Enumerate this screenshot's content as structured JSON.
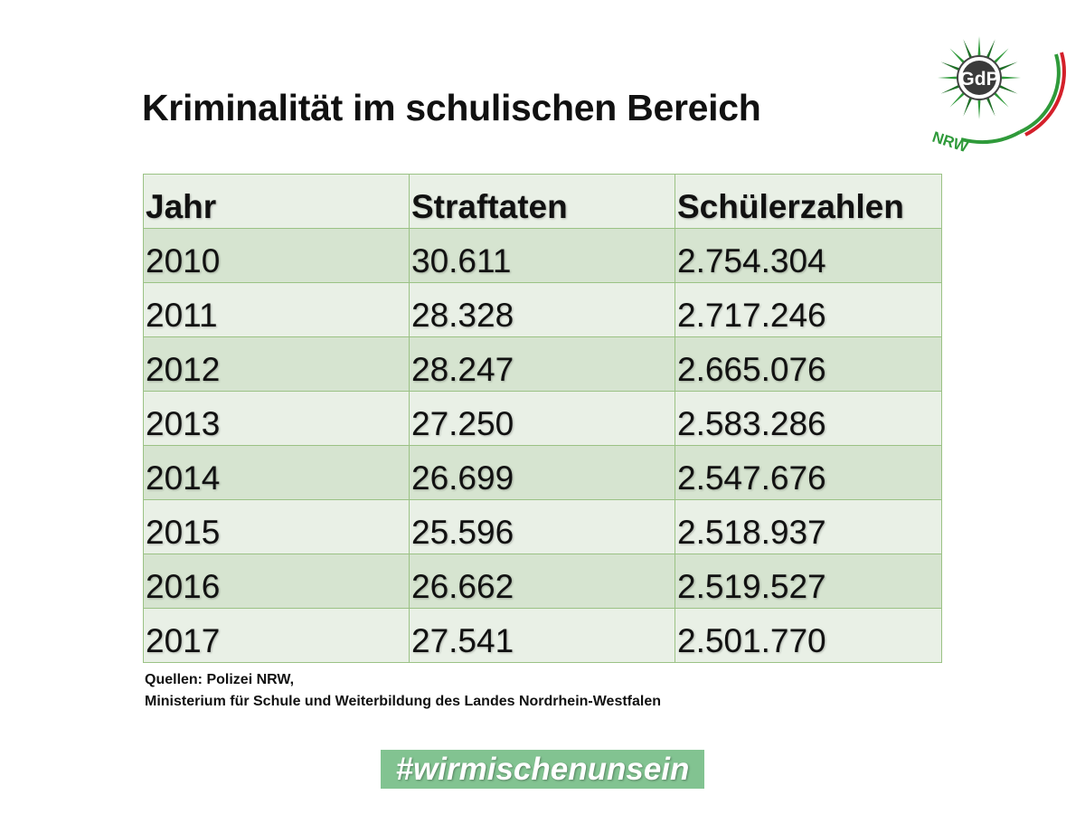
{
  "slide": {
    "title": "Kriminalität im schulischen Bereich"
  },
  "logo": {
    "monogram": "GdP",
    "region": "NRW",
    "colors": {
      "star": "#2f9a3a",
      "star_dark": "#1f6f27",
      "arc_green": "#2f9a3a",
      "arc_red": "#d4202a"
    }
  },
  "table": {
    "headers": {
      "year": "Jahr",
      "offenses": "Straftaten",
      "students": "Schülerzahlen"
    },
    "rows": [
      {
        "year": "2010",
        "offenses": "30.611",
        "students": "2.754.304"
      },
      {
        "year": "2011",
        "offenses": "28.328",
        "students": "2.717.246"
      },
      {
        "year": "2012",
        "offenses": "28.247",
        "students": "2.665.076"
      },
      {
        "year": "2013",
        "offenses": "27.250",
        "students": "2.583.286"
      },
      {
        "year": "2014",
        "offenses": "26.699",
        "students": "2.547.676"
      },
      {
        "year": "2015",
        "offenses": "25.596",
        "students": "2.518.937"
      },
      {
        "year": "2016",
        "offenses": "26.662",
        "students": "2.519.527"
      },
      {
        "year": "2017",
        "offenses": "27.541",
        "students": "2.501.770"
      }
    ]
  },
  "sources": {
    "line1": "Quellen: Polizei NRW,",
    "line2": "Ministerium für Schule und Weiterbildung des Landes Nordrhein-Westfalen"
  },
  "hashtag": "#wirmischenunsein"
}
